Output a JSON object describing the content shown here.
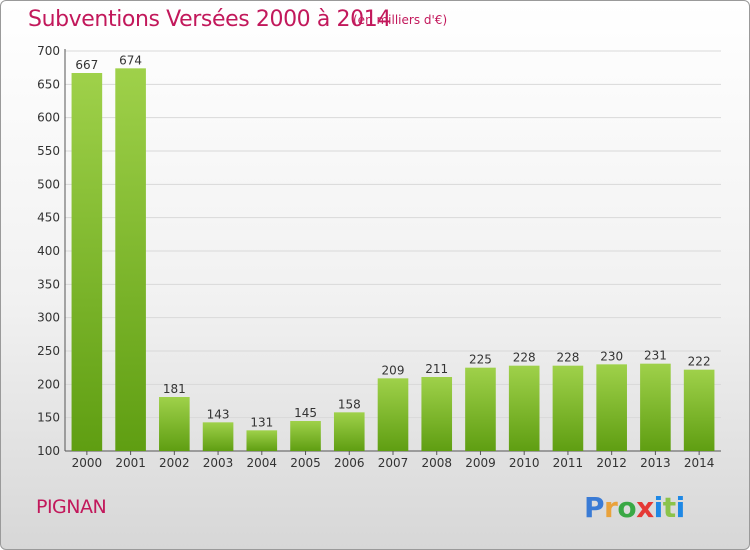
{
  "header": {
    "title": "Subventions Versées 2000 à 2014",
    "subtitle": "(en milliers d'€)"
  },
  "footer": {
    "commune": "PIGNAN",
    "logo_text": "Proxiti",
    "logo_colors": [
      "#3a7bd5",
      "#e9a23b",
      "#3aa845",
      "#e53935",
      "#1e88e5",
      "#8bc34a"
    ]
  },
  "chart_data": {
    "type": "bar",
    "title": "Subventions Versées 2000 à 2014",
    "subtitle": "(en milliers d'€)",
    "categories": [
      "2000",
      "2001",
      "2002",
      "2003",
      "2004",
      "2005",
      "2006",
      "2007",
      "2008",
      "2009",
      "2010",
      "2011",
      "2012",
      "2013",
      "2014"
    ],
    "values": [
      667,
      674,
      181,
      143,
      131,
      145,
      158,
      209,
      211,
      225,
      228,
      228,
      230,
      231,
      222
    ],
    "ylim": [
      100,
      700
    ],
    "yticks": [
      100,
      150,
      200,
      250,
      300,
      350,
      400,
      450,
      500,
      550,
      600,
      650,
      700
    ],
    "grid": true,
    "bar_color_top": "#9fd14a",
    "bar_color_bottom": "#5f9e12"
  }
}
